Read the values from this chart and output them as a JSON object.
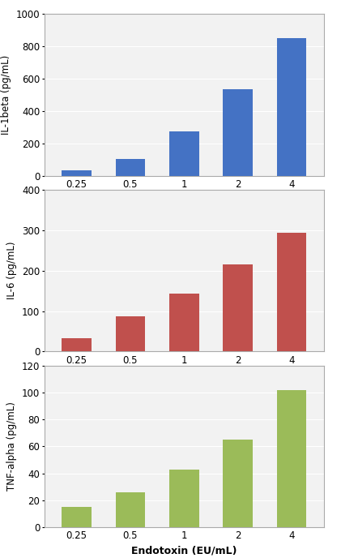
{
  "categories": [
    "0.25",
    "0.5",
    "1",
    "2",
    "4"
  ],
  "il1beta": {
    "values": [
      35,
      105,
      275,
      535,
      850
    ],
    "color": "#4472C4",
    "ylabel": "IL-1beta (pg/mL)",
    "ylim": [
      0,
      1000
    ],
    "yticks": [
      0,
      200,
      400,
      600,
      800,
      1000
    ]
  },
  "il6": {
    "values": [
      33,
      88,
      143,
      215,
      293
    ],
    "color": "#C0504D",
    "ylabel": "IL-6 (pg/mL)",
    "ylim": [
      0,
      400
    ],
    "yticks": [
      0,
      100,
      200,
      300,
      400
    ]
  },
  "tnfalpha": {
    "values": [
      15,
      26,
      43,
      65,
      102
    ],
    "color": "#9BBB59",
    "ylabel": "TNF-alpha (pg/mL)",
    "ylim": [
      0,
      120
    ],
    "yticks": [
      0,
      20,
      40,
      60,
      80,
      100,
      120
    ]
  },
  "xlabel": "Endotoxin (EU/mL)",
  "xlabel_fontsize": 9,
  "xlabel_fontweight": "bold",
  "ylabel_fontsize": 8.5,
  "tick_fontsize": 8.5,
  "bar_width": 0.55,
  "bg_color": "#FFFFFF",
  "panel_bg": "#F2F2F2",
  "grid_color": "#FFFFFF",
  "border_color": "#AAAAAA"
}
